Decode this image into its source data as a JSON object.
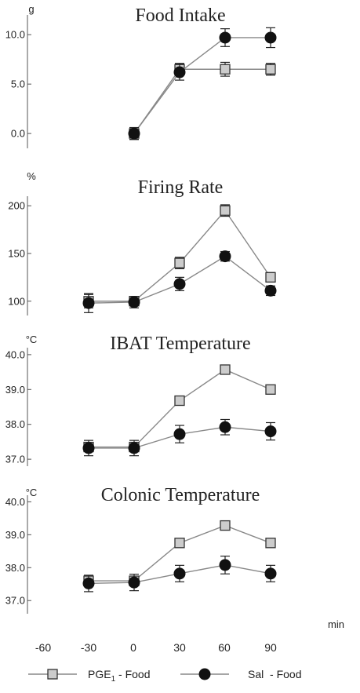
{
  "chart_data": [
    {
      "type": "line",
      "title": "Food Intake",
      "ylabel": "g",
      "ylim": [
        -1.5,
        12
      ],
      "yticks": [
        "0.0",
        "5.0",
        "10.0"
      ],
      "x": [
        -60,
        -30,
        0,
        30,
        60,
        90
      ],
      "series": [
        {
          "name": "PGE1 - Food",
          "values": [
            null,
            null,
            0.0,
            6.5,
            6.5,
            6.5
          ],
          "err": [
            0,
            0,
            0.6,
            0.6,
            0.7,
            0.6
          ]
        },
        {
          "name": "Sal - Food",
          "values": [
            null,
            null,
            0.0,
            6.2,
            9.7,
            9.7
          ],
          "err": [
            0,
            0,
            0.6,
            0.8,
            0.9,
            1.0
          ]
        }
      ]
    },
    {
      "type": "line",
      "title": "Firing Rate",
      "ylabel": "%",
      "ylim": [
        85,
        210
      ],
      "yticks": [
        "100",
        "150",
        "200"
      ],
      "x": [
        -60,
        -30,
        0,
        30,
        60,
        90
      ],
      "series": [
        {
          "name": "PGE1 - Food",
          "values": [
            null,
            100,
            100,
            140,
            195,
            125
          ],
          "err": [
            0,
            7,
            4,
            6,
            6,
            5
          ]
        },
        {
          "name": "Sal - Food",
          "values": [
            null,
            98,
            99,
            118,
            147,
            111
          ],
          "err": [
            0,
            10,
            6,
            7,
            5,
            5
          ]
        }
      ]
    },
    {
      "type": "line",
      "title": "IBAT Temperature",
      "ylabel": "°C",
      "ylim": [
        36.8,
        40.2
      ],
      "yticks": [
        "37.0",
        "38.0",
        "39.0",
        "40.0"
      ],
      "x": [
        -60,
        -30,
        0,
        30,
        60,
        90
      ],
      "series": [
        {
          "name": "PGE1 - Food",
          "values": [
            null,
            37.35,
            37.35,
            38.68,
            39.57,
            39.0
          ],
          "err": [
            0,
            0.1,
            0.1,
            0.1,
            0.12,
            0.1
          ]
        },
        {
          "name": "Sal - Food",
          "values": [
            null,
            37.32,
            37.32,
            37.72,
            37.92,
            37.8
          ],
          "err": [
            0,
            0.22,
            0.22,
            0.25,
            0.22,
            0.25
          ]
        }
      ]
    },
    {
      "type": "line",
      "title": "Colonic Temperature",
      "ylabel": "°C",
      "ylim": [
        36.6,
        40.2
      ],
      "yticks": [
        "37.0",
        "38.0",
        "39.0",
        "40.0"
      ],
      "x": [
        -60,
        -30,
        0,
        30,
        60,
        90
      ],
      "series": [
        {
          "name": "PGE1 - Food",
          "values": [
            null,
            37.6,
            37.6,
            38.75,
            39.28,
            38.75
          ],
          "err": [
            0,
            0.1,
            0.1,
            0.1,
            0.12,
            0.1
          ]
        },
        {
          "name": "Sal - Food",
          "values": [
            null,
            37.52,
            37.55,
            37.82,
            38.08,
            37.82
          ],
          "err": [
            0,
            0.25,
            0.25,
            0.25,
            0.27,
            0.25
          ]
        }
      ]
    }
  ],
  "x_axis": {
    "unit": "min",
    "tick_labels": [
      "-60",
      "-30",
      "0",
      "30",
      "60",
      "90"
    ]
  },
  "legend": {
    "placement": "bottom",
    "items": [
      {
        "label": "PGE",
        "subscript": "1",
        "suffix": " - Food",
        "marker": "open-square"
      },
      {
        "label": "Sal  - Food",
        "marker": "filled-circle"
      }
    ]
  },
  "colors": {
    "pge_line": "#888888",
    "pge_marker_fill": "#cccccc",
    "sal_line": "#888888",
    "sal_marker_fill": "#111111",
    "axis": "#555555"
  }
}
